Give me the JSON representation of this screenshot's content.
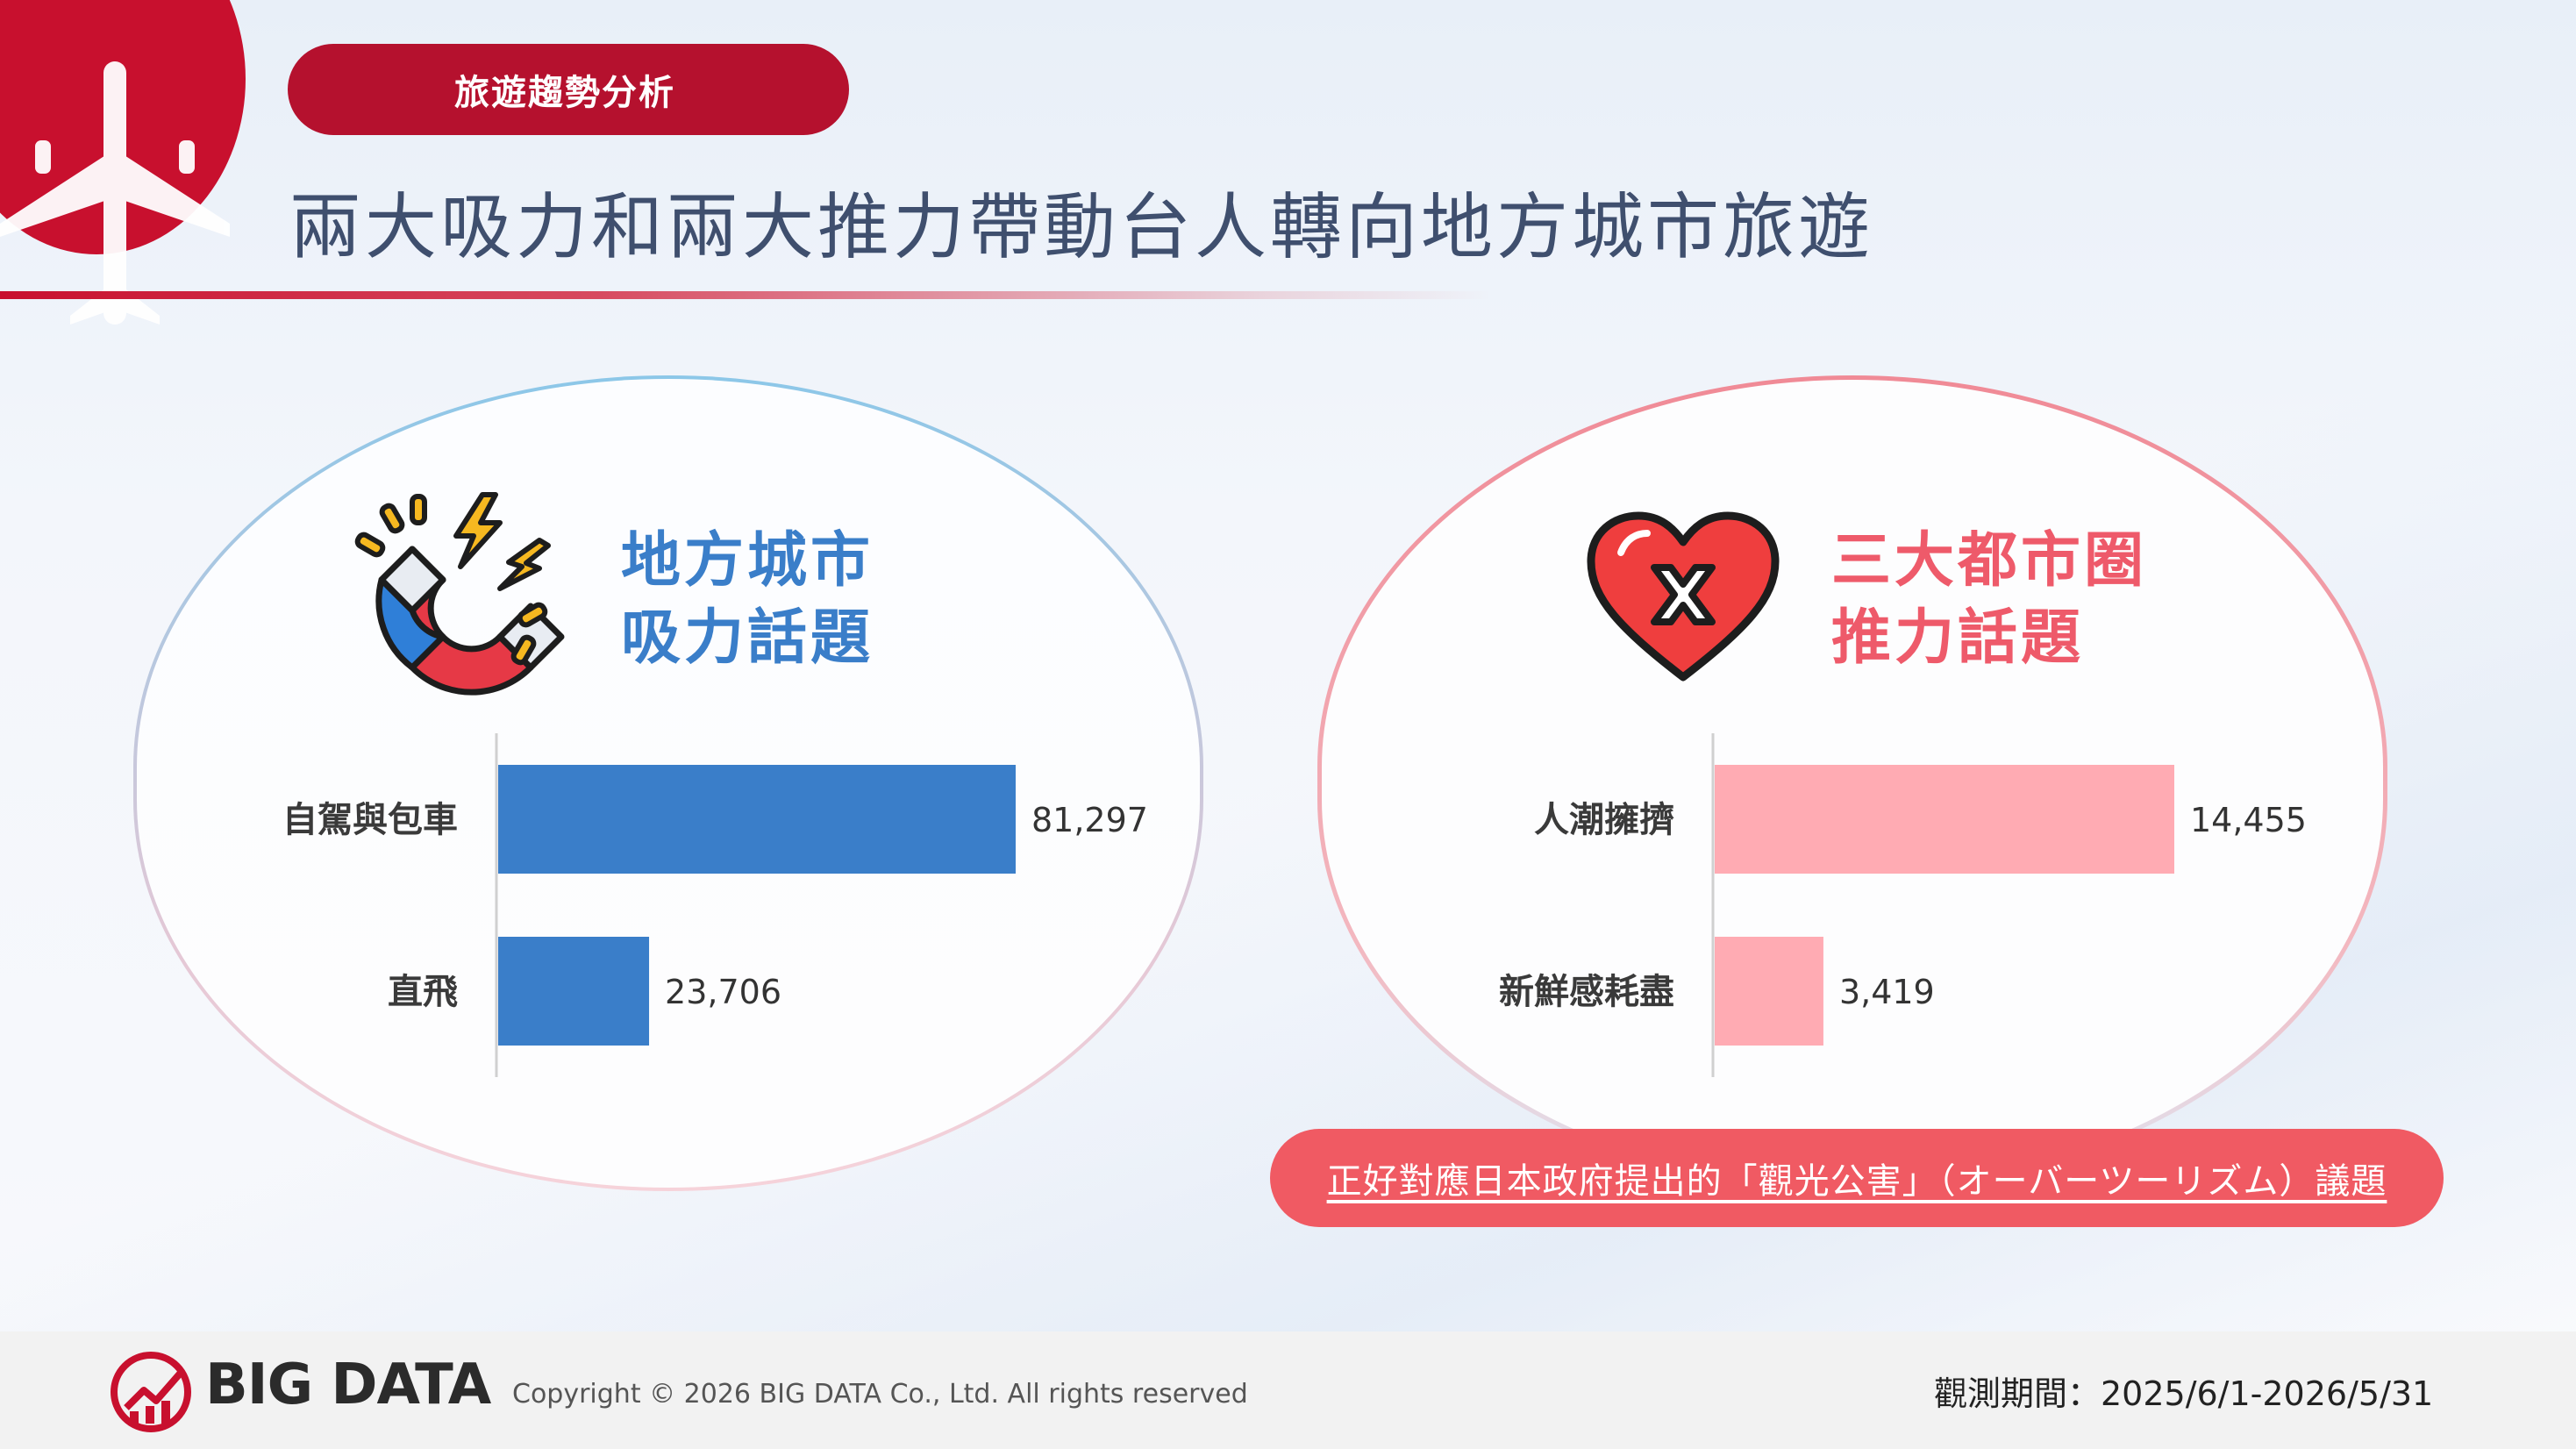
{
  "section_tag": "旅遊趨勢分析",
  "main_title": "兩大吸力和兩大推力帶動台人轉向地方城市旅遊",
  "left_panel": {
    "heading_line1": "地方城市",
    "heading_line2": "吸力話題",
    "icon": "magnet-icon",
    "color": "#3a7ec9"
  },
  "right_panel": {
    "heading_line1": "三大都市圈",
    "heading_line2": "推力話題",
    "icon": "broken-heart-x-icon",
    "color": "#ee5a6a"
  },
  "chart_data": [
    {
      "type": "bar",
      "orientation": "horizontal",
      "title": "",
      "categories": [
        "自駕與包車",
        "直飛"
      ],
      "values": [
        81297,
        23706
      ],
      "value_labels": [
        "81,297",
        "23,706"
      ],
      "xlim": [
        0,
        81297
      ],
      "grid": false,
      "bar_color": "#3a7ec9"
    },
    {
      "type": "bar",
      "orientation": "horizontal",
      "title": "",
      "categories": [
        "人潮擁擠",
        "新鮮感耗盡"
      ],
      "values": [
        14455,
        3419
      ],
      "value_labels": [
        "14,455",
        "3,419"
      ],
      "xlim": [
        0,
        14455
      ],
      "grid": false,
      "bar_color": "#ffabb3"
    }
  ],
  "note": "正好對應日本政府提出的「觀光公害」（オーバーツーリズム）議題",
  "footer": {
    "logo_text": "BIG DATA",
    "copyright": "Copyright © 2026 BIG DATA Co., Ltd. All rights reserved",
    "period": "觀測期間：2025/6/1-2026/5/31"
  }
}
